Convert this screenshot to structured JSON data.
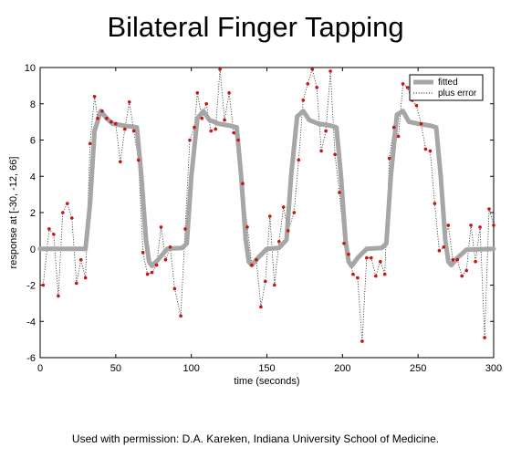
{
  "title": "Bilateral Finger Tapping",
  "credit": "Used with permission: D.A. Kareken, Indiana University School of Medicine.",
  "colors": {
    "fitted": "#a6a6a6",
    "plus_error": "#333333",
    "point": "#cc1111"
  },
  "chart_data": {
    "type": "line",
    "xlabel": "time (seconds)",
    "ylabel": "response at [-30, -12, 66]",
    "xlim": [
      0,
      300
    ],
    "ylim": [
      -6,
      10
    ],
    "xticks": [
      0,
      50,
      100,
      150,
      200,
      250,
      300
    ],
    "yticks": [
      -6,
      -4,
      -2,
      0,
      2,
      4,
      6,
      8,
      10
    ],
    "grid": false,
    "legend": {
      "placement": "top-right",
      "entries": [
        "fitted",
        "plus error"
      ]
    },
    "series": [
      {
        "name": "fitted",
        "style": "thick-solid",
        "points": [
          [
            0,
            0
          ],
          [
            30,
            0
          ],
          [
            33,
            2.5
          ],
          [
            36,
            6.5
          ],
          [
            40,
            7.6
          ],
          [
            44,
            7.2
          ],
          [
            48,
            6.9
          ],
          [
            55,
            6.8
          ],
          [
            64,
            6.7
          ],
          [
            67,
            4
          ],
          [
            70,
            0.5
          ],
          [
            72,
            -0.7
          ],
          [
            74,
            -0.95
          ],
          [
            78,
            -0.6
          ],
          [
            84,
            0
          ],
          [
            94,
            0.05
          ],
          [
            97,
            0.3
          ],
          [
            100,
            4
          ],
          [
            104,
            7.2
          ],
          [
            108,
            7.6
          ],
          [
            112,
            7.1
          ],
          [
            118,
            6.9
          ],
          [
            125,
            6.8
          ],
          [
            130,
            6.7
          ],
          [
            133,
            4
          ],
          [
            136,
            0.5
          ],
          [
            138,
            -0.7
          ],
          [
            140,
            -0.9
          ],
          [
            144,
            -0.5
          ],
          [
            150,
            0
          ],
          [
            158,
            0.05
          ],
          [
            163,
            0.5
          ],
          [
            166,
            4
          ],
          [
            170,
            7.3
          ],
          [
            174,
            7.6
          ],
          [
            178,
            7.1
          ],
          [
            184,
            6.9
          ],
          [
            192,
            6.8
          ],
          [
            196,
            6.7
          ],
          [
            199,
            4
          ],
          [
            202,
            0.5
          ],
          [
            204,
            -0.7
          ],
          [
            206,
            -0.95
          ],
          [
            210,
            -0.5
          ],
          [
            216,
            0
          ],
          [
            226,
            0.05
          ],
          [
            229,
            0.3
          ],
          [
            232,
            4
          ],
          [
            236,
            7.4
          ],
          [
            240,
            7.6
          ],
          [
            244,
            7.0
          ],
          [
            250,
            6.9
          ],
          [
            258,
            6.8
          ],
          [
            262,
            6.7
          ],
          [
            265,
            4
          ],
          [
            268,
            0.5
          ],
          [
            270,
            -0.7
          ],
          [
            272,
            -0.9
          ],
          [
            276,
            -0.5
          ],
          [
            282,
            -0.05
          ],
          [
            300,
            0
          ]
        ]
      },
      {
        "name": "plus error",
        "style": "dotted",
        "points": [
          [
            2,
            -2.0
          ],
          [
            6,
            1.1
          ],
          [
            9,
            0.8
          ],
          [
            12,
            -2.6
          ],
          [
            15,
            2.0
          ],
          [
            18,
            2.5
          ],
          [
            21,
            1.7
          ],
          [
            24,
            -1.9
          ],
          [
            27,
            -0.6
          ],
          [
            30,
            -1.6
          ],
          [
            33,
            5.8
          ],
          [
            36,
            8.4
          ],
          [
            38,
            7.2
          ],
          [
            41,
            7.6
          ],
          [
            44,
            7.2
          ],
          [
            47,
            7.0
          ],
          [
            50,
            6.9
          ],
          [
            53,
            4.8
          ],
          [
            56,
            6.6
          ],
          [
            59,
            8.1
          ],
          [
            62,
            6.5
          ],
          [
            65,
            4.9
          ],
          [
            68,
            -0.2
          ],
          [
            71,
            -1.4
          ],
          [
            74,
            -1.3
          ],
          [
            77,
            -0.9
          ],
          [
            80,
            1.2
          ],
          [
            83,
            -0.6
          ],
          [
            86,
            0.1
          ],
          [
            89,
            -2.2
          ],
          [
            93,
            -3.7
          ],
          [
            96,
            1.1
          ],
          [
            99,
            6.0
          ],
          [
            102,
            6.7
          ],
          [
            104,
            8.6
          ],
          [
            107,
            7.2
          ],
          [
            110,
            8.0
          ],
          [
            113,
            6.5
          ],
          [
            116,
            6.6
          ],
          [
            119,
            9.9
          ],
          [
            122,
            7.1
          ],
          [
            125,
            8.6
          ],
          [
            128,
            6.4
          ],
          [
            131,
            6.0
          ],
          [
            134,
            3.6
          ],
          [
            137,
            1.2
          ],
          [
            140,
            -0.9
          ],
          [
            143,
            -0.6
          ],
          [
            146,
            -3.2
          ],
          [
            149,
            -1.8
          ],
          [
            152,
            1.8
          ],
          [
            155,
            -2.0
          ],
          [
            158,
            0.4
          ],
          [
            161,
            2.3
          ],
          [
            164,
            1.0
          ],
          [
            168,
            2.0
          ],
          [
            171,
            4.9
          ],
          [
            174,
            8.2
          ],
          [
            177,
            9.1
          ],
          [
            180,
            9.9
          ],
          [
            183,
            8.9
          ],
          [
            186,
            5.4
          ],
          [
            189,
            6.5
          ],
          [
            192,
            9.8
          ],
          [
            195,
            5.2
          ],
          [
            198,
            3.1
          ],
          [
            201,
            0.3
          ],
          [
            204,
            -0.3
          ],
          [
            207,
            -1.4
          ],
          [
            210,
            -1.6
          ],
          [
            213,
            -5.1
          ],
          [
            216,
            -0.5
          ],
          [
            219,
            -0.5
          ],
          [
            222,
            -1.5
          ],
          [
            225,
            -0.7
          ],
          [
            228,
            -1.4
          ],
          [
            231,
            5.0
          ],
          [
            234,
            6.7
          ],
          [
            237,
            6.2
          ],
          [
            240,
            9.1
          ],
          [
            243,
            8.9
          ],
          [
            246,
            8.2
          ],
          [
            249,
            7.9
          ],
          [
            252,
            6.9
          ],
          [
            255,
            5.5
          ],
          [
            258,
            5.4
          ],
          [
            261,
            2.5
          ],
          [
            264,
            -0.1
          ],
          [
            267,
            0.1
          ],
          [
            270,
            1.3
          ],
          [
            273,
            -0.6
          ],
          [
            276,
            -0.6
          ],
          [
            279,
            -1.5
          ],
          [
            282,
            -1.2
          ],
          [
            285,
            1.3
          ],
          [
            288,
            -0.7
          ],
          [
            291,
            1.2
          ],
          [
            294,
            -4.9
          ],
          [
            297,
            2.2
          ],
          [
            300,
            1.3
          ]
        ]
      }
    ]
  }
}
